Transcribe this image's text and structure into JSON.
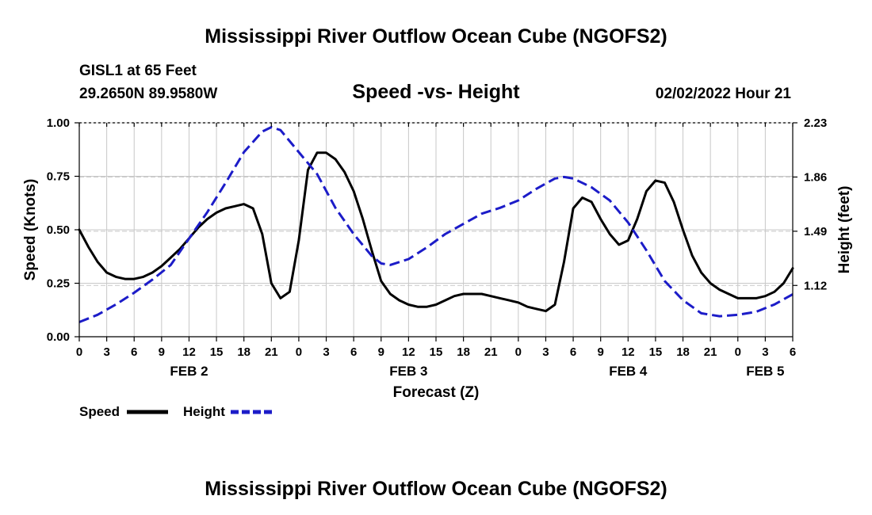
{
  "header": {
    "title": "Mississippi River Outflow Ocean Cube (NGOFS2)",
    "station": "GISL1 at 65 Feet",
    "coords": "29.2650N  89.9580W",
    "subtitle": "Speed -vs- Height",
    "datetime": "02/02/2022 Hour 21"
  },
  "footer": {
    "repeat_title": "Mississippi River Outflow Ocean Cube (NGOFS2)"
  },
  "chart_data": {
    "type": "line",
    "title": "Speed -vs- Height",
    "xlabel": "Forecast (Z)",
    "ylabel": "Speed (Knots)",
    "y2label": "Height (feet)",
    "xlim": [
      0,
      78
    ],
    "ylim": [
      0,
      1.0
    ],
    "y2lim": [
      0.77,
      2.23
    ],
    "x_ticks": [
      0,
      3,
      6,
      9,
      12,
      15,
      18,
      21,
      24,
      27,
      30,
      33,
      36,
      39,
      42,
      45,
      48,
      51,
      54,
      57,
      60,
      63,
      66,
      69,
      72,
      75,
      78
    ],
    "x_tick_labels": [
      "0",
      "3",
      "6",
      "9",
      "12",
      "15",
      "18",
      "21",
      "0",
      "3",
      "6",
      "9",
      "12",
      "15",
      "18",
      "21",
      "0",
      "3",
      "6",
      "9",
      "12",
      "15",
      "18",
      "21",
      "0",
      "3",
      "6"
    ],
    "y_ticks": [
      0,
      0.25,
      0.5,
      0.75,
      1.0
    ],
    "y_tick_labels": [
      "0.00",
      "0.25",
      "0.50",
      "0.75",
      "1.00"
    ],
    "y2_ticks": [
      1.12,
      1.49,
      1.86,
      2.23
    ],
    "y2_tick_labels": [
      "1.12",
      "1.49",
      "1.86",
      "2.23"
    ],
    "day_labels": [
      {
        "x": 12,
        "label": "FEB 2"
      },
      {
        "x": 36,
        "label": "FEB 3"
      },
      {
        "x": 60,
        "label": "FEB 4"
      },
      {
        "x": 75,
        "label": "FEB 5"
      }
    ],
    "grid": true,
    "legend": "bottom-left",
    "series": [
      {
        "name": "Speed",
        "axis": "left",
        "color": "#000000",
        "dash": "solid",
        "x": [
          0,
          1,
          2,
          3,
          4,
          5,
          6,
          7,
          8,
          9,
          10,
          11,
          12,
          13,
          14,
          15,
          16,
          17,
          18,
          19,
          20,
          21,
          22,
          23,
          24,
          25,
          26,
          27,
          28,
          29,
          30,
          31,
          32,
          33,
          34,
          35,
          36,
          37,
          38,
          39,
          40,
          41,
          42,
          43,
          44,
          45,
          46,
          47,
          48,
          49,
          50,
          51,
          52,
          53,
          54,
          55,
          56,
          57,
          58,
          59,
          60,
          61,
          62,
          63,
          64,
          65,
          66,
          67,
          68,
          69,
          70,
          71,
          72,
          73,
          74,
          75,
          76,
          77,
          78
        ],
        "values": [
          0.5,
          0.42,
          0.35,
          0.3,
          0.28,
          0.27,
          0.27,
          0.28,
          0.3,
          0.33,
          0.37,
          0.41,
          0.46,
          0.51,
          0.55,
          0.58,
          0.6,
          0.61,
          0.62,
          0.6,
          0.48,
          0.25,
          0.18,
          0.21,
          0.45,
          0.78,
          0.86,
          0.86,
          0.83,
          0.77,
          0.68,
          0.55,
          0.4,
          0.26,
          0.2,
          0.17,
          0.15,
          0.14,
          0.14,
          0.15,
          0.17,
          0.19,
          0.2,
          0.2,
          0.2,
          0.19,
          0.18,
          0.17,
          0.16,
          0.14,
          0.13,
          0.12,
          0.15,
          0.35,
          0.6,
          0.65,
          0.63,
          0.55,
          0.48,
          0.43,
          0.45,
          0.55,
          0.68,
          0.73,
          0.72,
          0.63,
          0.5,
          0.38,
          0.3,
          0.25,
          0.22,
          0.2,
          0.18,
          0.18,
          0.18,
          0.19,
          0.21,
          0.25,
          0.32
        ]
      },
      {
        "name": "Height",
        "axis": "right",
        "color": "#1c1cc8",
        "dash": "dashed",
        "x": [
          0,
          2,
          4,
          6,
          8,
          10,
          12,
          14,
          16,
          18,
          20,
          21,
          22,
          24,
          26,
          28,
          30,
          32,
          33,
          34,
          36,
          38,
          40,
          42,
          44,
          46,
          48,
          50,
          52,
          53,
          54,
          56,
          58,
          60,
          62,
          64,
          66,
          68,
          70,
          72,
          74,
          76,
          78
        ],
        "y2_values": [
          0.87,
          0.92,
          0.99,
          1.07,
          1.16,
          1.26,
          1.44,
          1.62,
          1.82,
          2.03,
          2.17,
          2.2,
          2.18,
          2.03,
          1.88,
          1.65,
          1.47,
          1.32,
          1.27,
          1.26,
          1.3,
          1.38,
          1.47,
          1.54,
          1.61,
          1.65,
          1.7,
          1.78,
          1.85,
          1.86,
          1.85,
          1.79,
          1.7,
          1.55,
          1.36,
          1.15,
          1.02,
          0.93,
          0.91,
          0.92,
          0.94,
          0.99,
          1.06
        ]
      }
    ]
  }
}
